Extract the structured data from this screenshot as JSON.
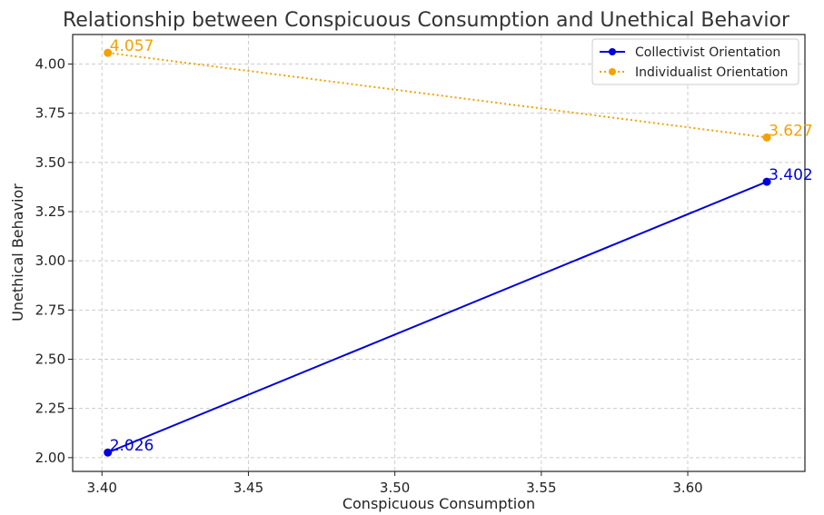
{
  "chart_data": {
    "type": "line",
    "title": "Relationship between Conspicuous Consumption and Unethical Behavior",
    "xlabel": "Conspicuous Consumption",
    "ylabel": "Unethical Behavior",
    "xlim": [
      3.39,
      3.64
    ],
    "ylim": [
      1.93,
      4.15
    ],
    "xticks": [
      3.4,
      3.45,
      3.5,
      3.55,
      3.6
    ],
    "xtick_labels": [
      "3.40",
      "3.45",
      "3.50",
      "3.55",
      "3.60"
    ],
    "yticks": [
      2.0,
      2.25,
      2.5,
      2.75,
      3.0,
      3.25,
      3.5,
      3.75,
      4.0
    ],
    "ytick_labels": [
      "2.00",
      "2.25",
      "2.50",
      "2.75",
      "3.00",
      "3.25",
      "3.50",
      "3.75",
      "4.00"
    ],
    "grid": true,
    "legend_position": "top-right",
    "series": [
      {
        "name": "Collectivist Orientation",
        "x": [
          3.402,
          3.627
        ],
        "y": [
          2.026,
          3.402
        ],
        "labels": [
          "2.026",
          "3.402"
        ],
        "color": "#0000dd",
        "line_style": "solid"
      },
      {
        "name": "Individualist Orientation",
        "x": [
          3.402,
          3.627
        ],
        "y": [
          4.057,
          3.627
        ],
        "labels": [
          "4.057",
          "3.627"
        ],
        "color": "#f5a100",
        "line_style": "dotted"
      }
    ]
  }
}
